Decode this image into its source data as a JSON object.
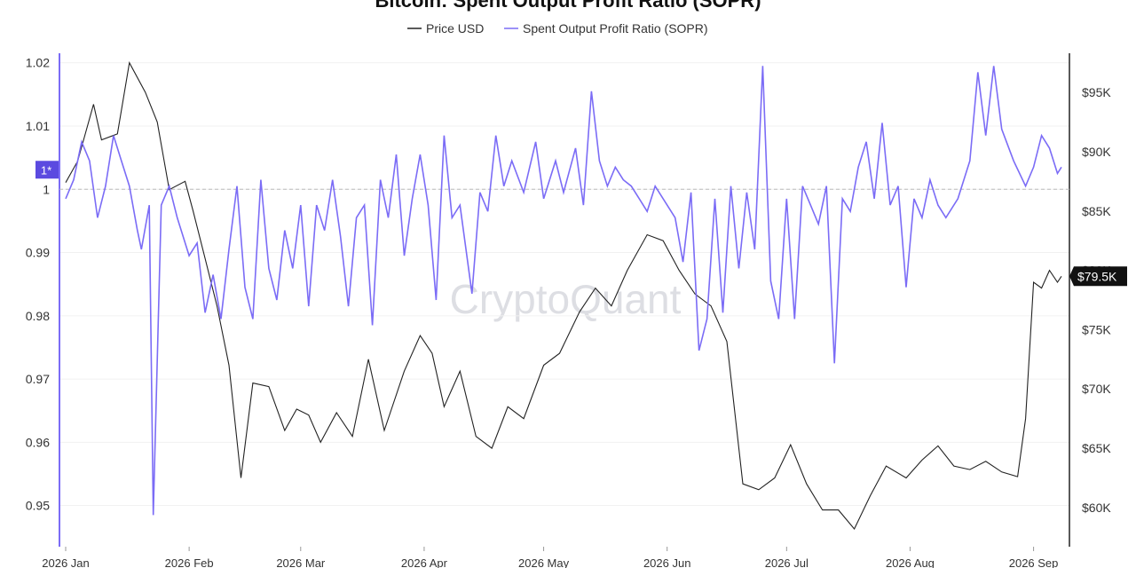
{
  "title": "Bitcoin: Spent Output Profit Ratio (SOPR)",
  "watermark": "CryptoQuant",
  "ref_badge": "1*",
  "price_tag": "$79.5K",
  "colors": {
    "price": "#222222",
    "sopr": "#7b6cf6",
    "badge": "#5b4ae0",
    "tag": "#111111",
    "ref_line": "#bbbbbb"
  },
  "chart_data": {
    "type": "line",
    "title": "Bitcoin: Spent Output Profit Ratio (SOPR)",
    "legend_position": "top-center",
    "x_ticks": [
      "2026 Jan",
      "2026 Feb",
      "2026 Mar",
      "2026 Apr",
      "2026 May",
      "2026 Jun",
      "2026 Jul",
      "2026 Aug",
      "2026 Sep"
    ],
    "x_range": [
      "2026-01-01",
      "2026-09-08"
    ],
    "left_axis": {
      "ylim": [
        0.9435,
        1.0215
      ],
      "ticks": [
        "0.95",
        "0.96",
        "0.97",
        "0.98",
        "0.99",
        "1",
        "1.01",
        "1.02"
      ],
      "reference_line": 1
    },
    "right_axis": {
      "ylim": [
        56700,
        98300
      ],
      "ticks": [
        "$60K",
        "$65K",
        "$70K",
        "$75K",
        "$80K",
        "$85K",
        "$90K",
        "$95K"
      ]
    },
    "series": [
      {
        "name": "Price USD",
        "axis": "right",
        "color": "#222222",
        "points": [
          [
            "2026-01-01",
            87400
          ],
          [
            "2026-01-04",
            89200
          ],
          [
            "2026-01-08",
            94000
          ],
          [
            "2026-01-10",
            91000
          ],
          [
            "2026-01-14",
            91500
          ],
          [
            "2026-01-17",
            97500
          ],
          [
            "2026-01-21",
            95000
          ],
          [
            "2026-01-24",
            92500
          ],
          [
            "2026-01-27",
            86800
          ],
          [
            "2026-01-31",
            87500
          ],
          [
            "2026-02-02",
            85000
          ],
          [
            "2026-02-05",
            81000
          ],
          [
            "2026-02-08",
            77000
          ],
          [
            "2026-02-11",
            72000
          ],
          [
            "2026-02-14",
            62500
          ],
          [
            "2026-02-17",
            70500
          ],
          [
            "2026-02-21",
            70200
          ],
          [
            "2026-02-25",
            66500
          ],
          [
            "2026-02-28",
            68300
          ],
          [
            "2026-03-03",
            67800
          ],
          [
            "2026-03-06",
            65500
          ],
          [
            "2026-03-10",
            68000
          ],
          [
            "2026-03-14",
            66000
          ],
          [
            "2026-03-18",
            72500
          ],
          [
            "2026-03-22",
            66500
          ],
          [
            "2026-03-27",
            71500
          ],
          [
            "2026-03-31",
            74500
          ],
          [
            "2026-04-03",
            73000
          ],
          [
            "2026-04-06",
            68500
          ],
          [
            "2026-04-10",
            71500
          ],
          [
            "2026-04-14",
            66000
          ],
          [
            "2026-04-18",
            65000
          ],
          [
            "2026-04-22",
            68500
          ],
          [
            "2026-04-26",
            67500
          ],
          [
            "2026-05-01",
            72000
          ],
          [
            "2026-05-05",
            73000
          ],
          [
            "2026-05-10",
            76500
          ],
          [
            "2026-05-14",
            78500
          ],
          [
            "2026-05-18",
            77000
          ],
          [
            "2026-05-22",
            80000
          ],
          [
            "2026-05-27",
            83000
          ],
          [
            "2026-05-31",
            82500
          ],
          [
            "2026-06-04",
            80000
          ],
          [
            "2026-06-08",
            78000
          ],
          [
            "2026-06-12",
            77000
          ],
          [
            "2026-06-16",
            74000
          ],
          [
            "2026-06-20",
            62000
          ],
          [
            "2026-06-24",
            61500
          ],
          [
            "2026-06-28",
            62500
          ],
          [
            "2026-07-02",
            65300
          ],
          [
            "2026-07-06",
            62000
          ],
          [
            "2026-07-10",
            59800
          ],
          [
            "2026-07-14",
            59800
          ],
          [
            "2026-07-18",
            58200
          ],
          [
            "2026-07-22",
            61000
          ],
          [
            "2026-07-26",
            63500
          ],
          [
            "2026-07-31",
            62500
          ],
          [
            "2026-08-04",
            64000
          ],
          [
            "2026-08-08",
            65200
          ],
          [
            "2026-08-12",
            63500
          ],
          [
            "2026-08-16",
            63200
          ],
          [
            "2026-08-20",
            63900
          ],
          [
            "2026-08-24",
            63000
          ],
          [
            "2026-08-28",
            62600
          ],
          [
            "2026-08-30",
            67500
          ],
          [
            "2026-09-01",
            79000
          ],
          [
            "2026-09-03",
            78500
          ],
          [
            "2026-09-05",
            80000
          ],
          [
            "2026-09-07",
            79000
          ],
          [
            "2026-09-08",
            79500
          ]
        ]
      },
      {
        "name": "Spent Output Profit Ratio (SOPR)",
        "axis": "left",
        "color": "#7b6cf6",
        "points": [
          [
            "2026-01-01",
            0.9985
          ],
          [
            "2026-01-03",
            1.0015
          ],
          [
            "2026-01-05",
            1.0075
          ],
          [
            "2026-01-07",
            1.0045
          ],
          [
            "2026-01-09",
            0.9955
          ],
          [
            "2026-01-11",
            1.0005
          ],
          [
            "2026-01-13",
            1.0085
          ],
          [
            "2026-01-15",
            1.0045
          ],
          [
            "2026-01-17",
            1.0005
          ],
          [
            "2026-01-19",
            0.9935
          ],
          [
            "2026-01-20",
            0.9905
          ],
          [
            "2026-01-22",
            0.9975
          ],
          [
            "2026-01-23",
            0.9485
          ],
          [
            "2026-01-25",
            0.9975
          ],
          [
            "2026-01-27",
            1.0005
          ],
          [
            "2026-01-29",
            0.9955
          ],
          [
            "2026-02-01",
            0.9895
          ],
          [
            "2026-02-03",
            0.9915
          ],
          [
            "2026-02-05",
            0.9805
          ],
          [
            "2026-02-07",
            0.9865
          ],
          [
            "2026-02-09",
            0.9795
          ],
          [
            "2026-02-11",
            0.9905
          ],
          [
            "2026-02-13",
            1.0005
          ],
          [
            "2026-02-15",
            0.9845
          ],
          [
            "2026-02-17",
            0.9795
          ],
          [
            "2026-02-19",
            1.0015
          ],
          [
            "2026-02-21",
            0.9875
          ],
          [
            "2026-02-23",
            0.9825
          ],
          [
            "2026-02-25",
            0.9935
          ],
          [
            "2026-02-27",
            0.9875
          ],
          [
            "2026-03-01",
            0.9975
          ],
          [
            "2026-03-03",
            0.9815
          ],
          [
            "2026-03-05",
            0.9975
          ],
          [
            "2026-03-07",
            0.9935
          ],
          [
            "2026-03-09",
            1.0015
          ],
          [
            "2026-03-11",
            0.9925
          ],
          [
            "2026-03-13",
            0.9815
          ],
          [
            "2026-03-15",
            0.9955
          ],
          [
            "2026-03-17",
            0.9975
          ],
          [
            "2026-03-19",
            0.9785
          ],
          [
            "2026-03-21",
            1.0015
          ],
          [
            "2026-03-23",
            0.9955
          ],
          [
            "2026-03-25",
            1.0055
          ],
          [
            "2026-03-27",
            0.9895
          ],
          [
            "2026-03-29",
            0.9985
          ],
          [
            "2026-03-31",
            1.0055
          ],
          [
            "2026-04-02",
            0.9975
          ],
          [
            "2026-04-04",
            0.9825
          ],
          [
            "2026-04-06",
            1.0085
          ],
          [
            "2026-04-08",
            0.9955
          ],
          [
            "2026-04-10",
            0.9975
          ],
          [
            "2026-04-13",
            0.9835
          ],
          [
            "2026-04-15",
            0.9995
          ],
          [
            "2026-04-17",
            0.9965
          ],
          [
            "2026-04-19",
            1.0085
          ],
          [
            "2026-04-21",
            1.0005
          ],
          [
            "2026-04-23",
            1.0045
          ],
          [
            "2026-04-26",
            0.9995
          ],
          [
            "2026-04-29",
            1.0075
          ],
          [
            "2026-05-01",
            0.9985
          ],
          [
            "2026-05-04",
            1.0045
          ],
          [
            "2026-05-06",
            0.9995
          ],
          [
            "2026-05-09",
            1.0065
          ],
          [
            "2026-05-11",
            0.9975
          ],
          [
            "2026-05-13",
            1.0155
          ],
          [
            "2026-05-15",
            1.0045
          ],
          [
            "2026-05-17",
            1.0005
          ],
          [
            "2026-05-19",
            1.0035
          ],
          [
            "2026-05-21",
            1.0015
          ],
          [
            "2026-05-23",
            1.0005
          ],
          [
            "2026-05-25",
            0.9985
          ],
          [
            "2026-05-27",
            0.9965
          ],
          [
            "2026-05-29",
            1.0005
          ],
          [
            "2026-06-01",
            0.9975
          ],
          [
            "2026-06-03",
            0.9955
          ],
          [
            "2026-06-05",
            0.9885
          ],
          [
            "2026-06-07",
            0.9995
          ],
          [
            "2026-06-09",
            0.9745
          ],
          [
            "2026-06-11",
            0.9795
          ],
          [
            "2026-06-13",
            0.9985
          ],
          [
            "2026-06-15",
            0.9805
          ],
          [
            "2026-06-17",
            1.0005
          ],
          [
            "2026-06-19",
            0.9875
          ],
          [
            "2026-06-21",
            0.9995
          ],
          [
            "2026-06-23",
            0.9905
          ],
          [
            "2026-06-25",
            1.0195
          ],
          [
            "2026-06-27",
            0.9855
          ],
          [
            "2026-06-29",
            0.9795
          ],
          [
            "2026-07-01",
            0.9985
          ],
          [
            "2026-07-03",
            0.9795
          ],
          [
            "2026-07-05",
            1.0005
          ],
          [
            "2026-07-07",
            0.9975
          ],
          [
            "2026-07-09",
            0.9945
          ],
          [
            "2026-07-11",
            1.0005
          ],
          [
            "2026-07-13",
            0.9725
          ],
          [
            "2026-07-15",
            0.9985
          ],
          [
            "2026-07-17",
            0.9965
          ],
          [
            "2026-07-19",
            1.0035
          ],
          [
            "2026-07-21",
            1.0075
          ],
          [
            "2026-07-23",
            0.9985
          ],
          [
            "2026-07-25",
            1.0105
          ],
          [
            "2026-07-27",
            0.9975
          ],
          [
            "2026-07-29",
            1.0005
          ],
          [
            "2026-07-31",
            0.9845
          ],
          [
            "2026-08-02",
            0.9985
          ],
          [
            "2026-08-04",
            0.9955
          ],
          [
            "2026-08-06",
            1.0015
          ],
          [
            "2026-08-08",
            0.9975
          ],
          [
            "2026-08-10",
            0.9955
          ],
          [
            "2026-08-13",
            0.9985
          ],
          [
            "2026-08-16",
            1.0045
          ],
          [
            "2026-08-18",
            1.0185
          ],
          [
            "2026-08-20",
            1.0085
          ],
          [
            "2026-08-22",
            1.0195
          ],
          [
            "2026-08-24",
            1.0095
          ],
          [
            "2026-08-27",
            1.0045
          ],
          [
            "2026-08-30",
            1.0005
          ],
          [
            "2026-09-01",
            1.0035
          ],
          [
            "2026-09-03",
            1.0085
          ],
          [
            "2026-09-05",
            1.0065
          ],
          [
            "2026-09-07",
            1.0025
          ],
          [
            "2026-09-08",
            1.0035
          ]
        ]
      }
    ]
  }
}
